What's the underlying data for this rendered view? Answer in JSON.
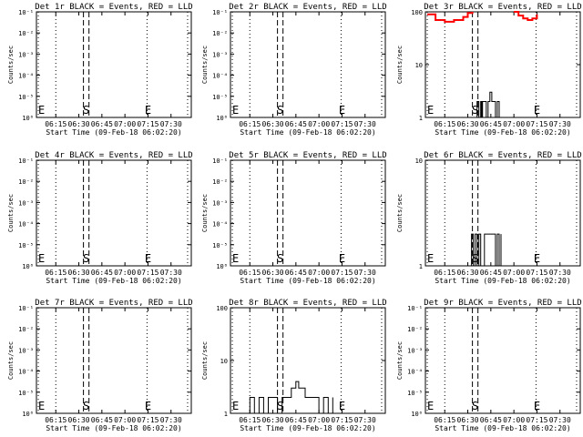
{
  "x_ticks": [
    "06:15",
    "06:30",
    "06:45",
    "07:00",
    "07:15",
    "07:30"
  ],
  "x_tick_hours": [
    6.25,
    6.5,
    6.75,
    7.0,
    7.25,
    7.5
  ],
  "xlabel": "Start Time (09-Feb-18 06:02:20)",
  "ylabel": "Counts/sec",
  "x_range": [
    6.04,
    7.72
  ],
  "markers": {
    "dotted": [
      6.06,
      6.25,
      7.24,
      7.68
    ],
    "dashed": [
      6.55,
      6.61
    ],
    "S": {
      "label": "S",
      "x": 6.58
    },
    "E": {
      "label": "E",
      "x": 7.25
    },
    "E_left": {
      "label": "E",
      "x": 6.04
    }
  },
  "chart_data": [
    {
      "type": "line",
      "title": "Det 1r BLACK = Events, RED = LLD",
      "yscale": "log",
      "ylim": [
        1e-06,
        0.1
      ],
      "ytick_labels": [
        "10⁻¹",
        "10⁻²",
        "10⁻³",
        "10⁻⁴",
        "10⁻⁵",
        "10⁰"
      ],
      "series": []
    },
    {
      "type": "line",
      "title": "Det 2r BLACK = Events, RED = LLD",
      "yscale": "log",
      "ylim": [
        1e-06,
        0.1
      ],
      "ytick_labels": [
        "10⁻¹",
        "10⁻²",
        "10⁻³",
        "10⁻⁴",
        "10⁻⁵",
        "10⁰"
      ],
      "series": []
    },
    {
      "type": "line",
      "title": "Det 3r BLACK = Events, RED = LLD",
      "yscale": "log",
      "ylim": [
        1,
        100
      ],
      "ytick_labels": [
        "100",
        "10",
        "1"
      ],
      "series": [
        {
          "color": "#000000",
          "x": [
            6.58,
            6.6,
            6.62,
            6.64,
            6.65,
            6.66,
            6.68,
            6.7,
            6.72,
            6.74,
            6.76,
            6.78,
            6.8,
            6.82,
            6.84
          ],
          "y": [
            1,
            2,
            1,
            2,
            1,
            2,
            2,
            1,
            2,
            3,
            2,
            2,
            1,
            2,
            1
          ]
        },
        {
          "color": "#ff0000",
          "x": [
            6.06,
            6.15,
            6.25,
            6.35,
            6.45,
            6.5,
            6.55
          ],
          "y": [
            90,
            70,
            65,
            70,
            80,
            95,
            100
          ]
        },
        {
          "color": "#ff0000",
          "x": [
            7.0,
            7.05,
            7.1,
            7.15,
            7.2,
            7.25
          ],
          "y": [
            100,
            85,
            75,
            70,
            75,
            90
          ]
        }
      ]
    },
    {
      "type": "line",
      "title": "Det 4r BLACK = Events, RED = LLD",
      "yscale": "log",
      "ylim": [
        1e-06,
        0.1
      ],
      "ytick_labels": [
        "10⁻¹",
        "10⁻²",
        "10⁻³",
        "10⁻⁴",
        "10⁻⁵",
        "10⁰"
      ],
      "series": []
    },
    {
      "type": "line",
      "title": "Det 5r BLACK = Events, RED = LLD",
      "yscale": "log",
      "ylim": [
        1e-06,
        0.1
      ],
      "ytick_labels": [
        "10⁻¹",
        "10⁻²",
        "10⁻³",
        "10⁻⁴",
        "10⁻⁵",
        "10⁰"
      ],
      "series": []
    },
    {
      "type": "line",
      "title": "Det 6r BLACK = Events, RED = LLD",
      "yscale": "log",
      "ylim": [
        1,
        10
      ],
      "ytick_labels": [
        "10",
        "1"
      ],
      "series": [
        {
          "color": "#000000",
          "x": [
            6.52,
            6.54,
            6.56,
            6.58,
            6.6,
            6.62,
            6.64,
            6.66,
            6.68,
            6.7,
            6.72,
            6.74,
            6.76,
            6.78,
            6.8,
            6.82,
            6.84,
            6.86
          ],
          "y": [
            1,
            2,
            1,
            2,
            1,
            2,
            1,
            1,
            2,
            2,
            2,
            2,
            2,
            2,
            1,
            2,
            1,
            2
          ]
        }
      ]
    },
    {
      "type": "line",
      "title": "Det 7r BLACK = Events, RED = LLD",
      "yscale": "log",
      "ylim": [
        1e-06,
        0.1
      ],
      "ytick_labels": [
        "10⁻¹",
        "10⁻²",
        "10⁻³",
        "10⁻⁴",
        "10⁻⁵",
        "10⁰"
      ],
      "series": []
    },
    {
      "type": "line",
      "title": "Det 8r BLACK = Events, RED = LLD",
      "yscale": "log",
      "ylim": [
        1,
        100
      ],
      "ytick_labels": [
        "100",
        "10",
        "1"
      ],
      "series": [
        {
          "color": "#000000",
          "x": [
            6.2,
            6.25,
            6.3,
            6.35,
            6.4,
            6.45,
            6.5,
            6.55,
            6.6,
            6.65,
            6.7,
            6.72,
            6.75,
            6.78,
            6.8,
            6.85,
            6.9,
            6.95,
            7.0,
            7.05,
            7.1,
            7.15
          ],
          "y": [
            1,
            2,
            1,
            2,
            1,
            2,
            2,
            1,
            2,
            2,
            3,
            3,
            4,
            3,
            3,
            2,
            2,
            2,
            1,
            2,
            1,
            2
          ]
        }
      ]
    },
    {
      "type": "line",
      "title": "Det 9r BLACK = Events, RED = LLD",
      "yscale": "log",
      "ylim": [
        1e-06,
        0.1
      ],
      "ytick_labels": [
        "10⁻¹",
        "10⁻²",
        "10⁻³",
        "10⁻⁴",
        "10⁻⁵",
        "10⁰"
      ],
      "series": []
    }
  ]
}
